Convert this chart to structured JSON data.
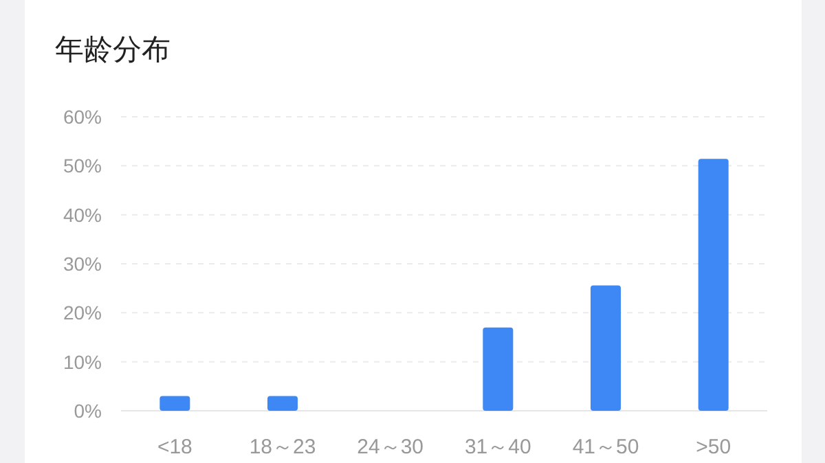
{
  "chart_data": {
    "type": "bar",
    "title": "年龄分布",
    "categories": [
      "<18",
      "18～23",
      "24～30",
      "31～40",
      "41～50",
      ">50"
    ],
    "values": [
      3,
      3,
      0,
      17,
      25.6,
      51.4
    ],
    "color": "#3d88f5",
    "ylim": [
      0,
      60
    ],
    "yticks": [
      {
        "value": 0,
        "label": "0%"
      },
      {
        "value": 10,
        "label": "10%"
      },
      {
        "value": 20,
        "label": "20%"
      },
      {
        "value": 30,
        "label": "30%"
      },
      {
        "value": 40,
        "label": "40%"
      },
      {
        "value": 50,
        "label": "50%"
      },
      {
        "value": 60,
        "label": "60%"
      }
    ],
    "grid": "y"
  }
}
